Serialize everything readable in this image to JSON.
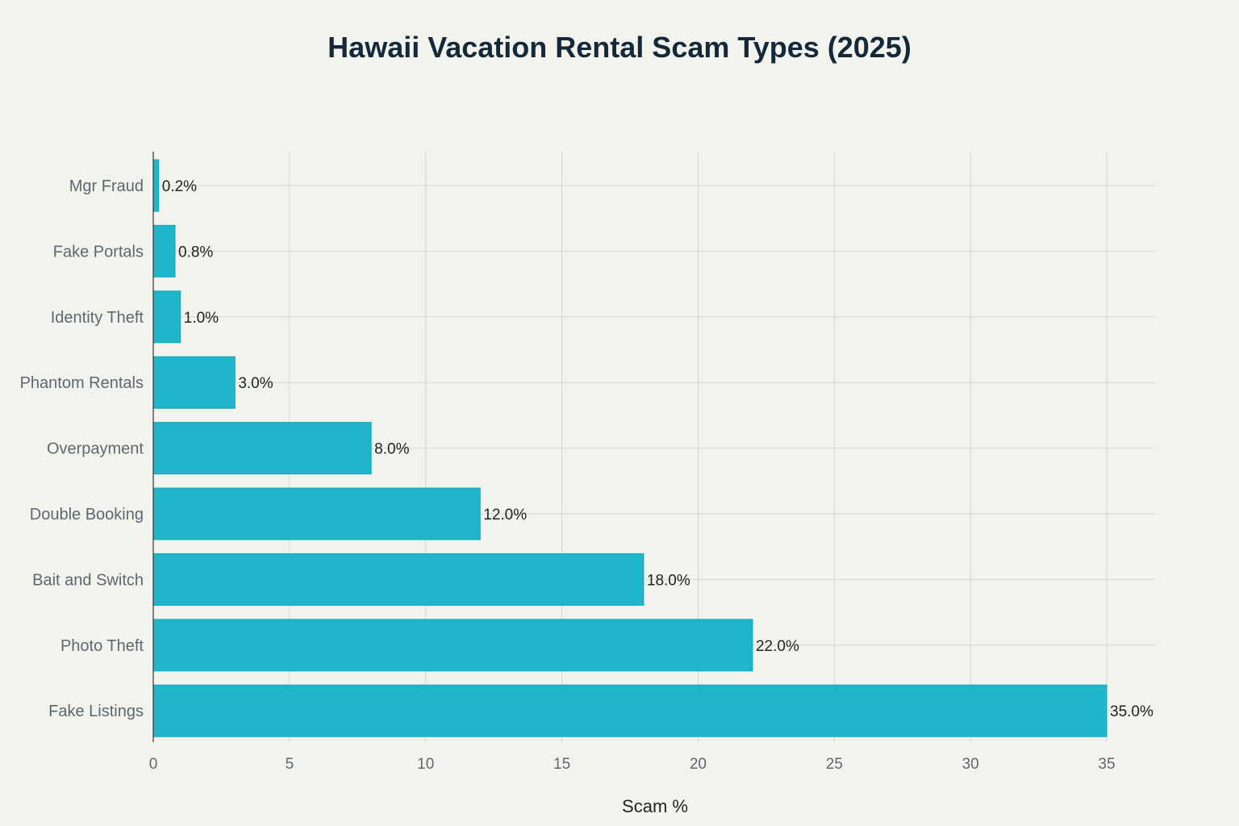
{
  "chart_data": {
    "type": "bar",
    "orientation": "horizontal",
    "title": "Hawaii Vacation Rental Scam Types (2025)",
    "xlabel": "Scam %",
    "ylabel": "",
    "xlim": [
      0,
      35
    ],
    "x_ticks": [
      0,
      5,
      10,
      15,
      20,
      25,
      30,
      35
    ],
    "grid": true,
    "legend": "none",
    "categories": [
      "Mgr Fraud",
      "Fake Portals",
      "Identity Theft",
      "Phantom Rentals",
      "Overpayment",
      "Double Booking",
      "Bait and Switch",
      "Photo Theft",
      "Fake Listings"
    ],
    "values": [
      0.2,
      0.8,
      1.0,
      3.0,
      8.0,
      12.0,
      18.0,
      22.0,
      35.0
    ],
    "data_labels": [
      "0.2%",
      "0.8%",
      "1.0%",
      "3.0%",
      "8.0%",
      "12.0%",
      "18.0%",
      "22.0%",
      "35.0%"
    ],
    "colors": {
      "bar": "#1fb6cb",
      "bar_edge": "#19a4b8",
      "grid": "#d6d6d0",
      "axis": "#333333",
      "tick_text": "#5c6870",
      "label_text": "#222222",
      "title_text": "#13293a"
    }
  }
}
